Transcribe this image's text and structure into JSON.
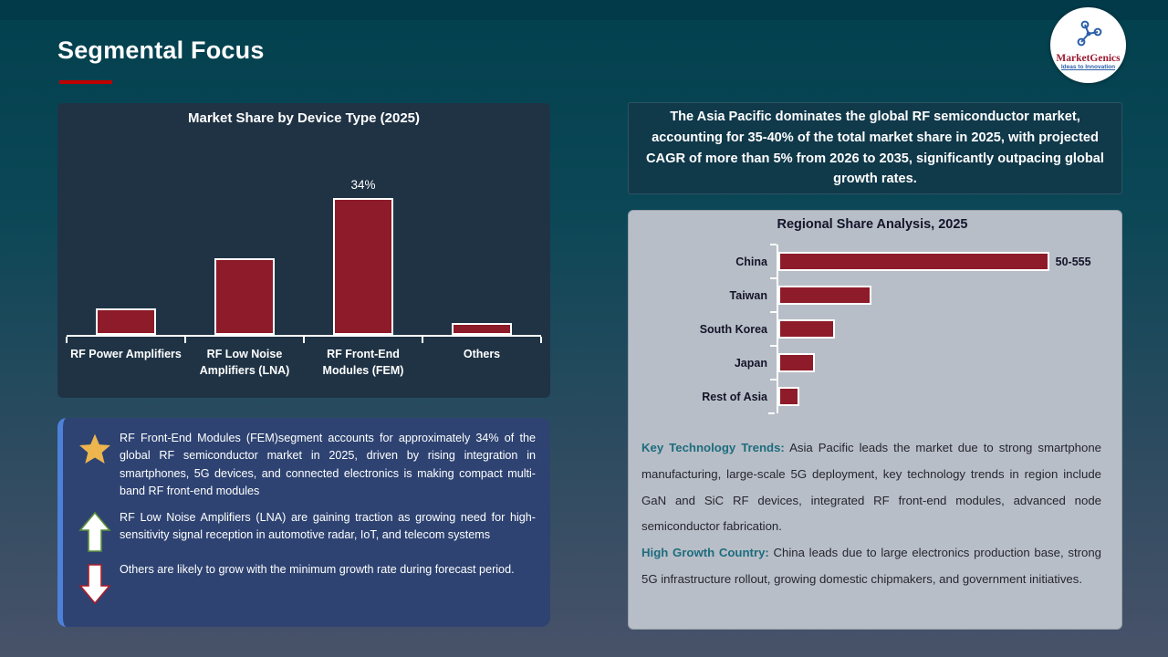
{
  "header": {
    "title": "Segmental Focus"
  },
  "logo": {
    "brand": "MarketGenics",
    "tagline": "Ideas to Innovation"
  },
  "chart_data": [
    {
      "id": "device-share",
      "type": "bar",
      "title": "Market Share by Device Type (2025)",
      "categories": [
        "RF Power Amplifiers",
        "RF Low Noise\nAmplifiers (LNA)",
        "RF Front-End\nModules (FEM)",
        "Others"
      ],
      "values": [
        6.5,
        19,
        34,
        3
      ],
      "data_labels": [
        "",
        "",
        "34%",
        ""
      ],
      "xlabel": "",
      "ylabel": "",
      "ylim": [
        0,
        40
      ],
      "grid": false,
      "legend": "none"
    },
    {
      "id": "regional-share",
      "type": "bar-horizontal",
      "title": "Regional Share Analysis, 2025",
      "categories": [
        "China",
        "Taiwan",
        "South Korea",
        "Japan",
        "Rest of Asia"
      ],
      "values": [
        52.5,
        18,
        11,
        7,
        4
      ],
      "data_labels": [
        "50-555",
        "",
        "",
        "",
        ""
      ],
      "xlabel": "",
      "ylabel": "",
      "xlim": [
        0,
        63
      ],
      "grid": false,
      "legend": "none"
    }
  ],
  "headline": "The Asia Pacific dominates the global RF semiconductor  market, accounting for 35-40% of the total market share in 2025, with projected CAGR of more than 5% from 2026 to 2035, significantly outpacing global growth rates.",
  "callouts": {
    "items": [
      {
        "icon": "star",
        "text": "RF Front-End Modules (FEM)segment accounts for approximately 34% of the global RF semiconductor  market in 2025, driven by rising integration in smartphones, 5G devices, and connected electronics is making compact multi-band RF front-end modules"
      },
      {
        "icon": "arrow-up",
        "text": "RF Low Noise Amplifiers (LNA) are gaining traction as growing need for high-sensitivity signal reception in automotive radar, IoT, and telecom systems"
      },
      {
        "icon": "arrow-down",
        "text": "Others are likely to grow with the minimum growth rate during forecast period."
      }
    ]
  },
  "regional_panel": {
    "notes": [
      {
        "label": "Key Technology Trends:",
        "text": "Asia Pacific leads the market due to strong smartphone manufacturing, large-scale 5G deployment, key technology trends in region include GaN and SiC RF devices, integrated RF front-end modules, advanced node semiconductor fabrication."
      },
      {
        "label": "High Growth Country:",
        "text": "China leads due to large electronics production base, strong 5G infrastructure rollout, growing domestic chipmakers, and government initiatives."
      }
    ]
  },
  "colors": {
    "accent_red": "#c00000",
    "bar_maroon": "#8e1b29",
    "callout_navy": "#2e4372",
    "callout_border_blue": "#4d81d9",
    "teal_label": "#1d6c7e",
    "panel_gray": "#b8bec7",
    "star_gold": "#ecb54e"
  }
}
